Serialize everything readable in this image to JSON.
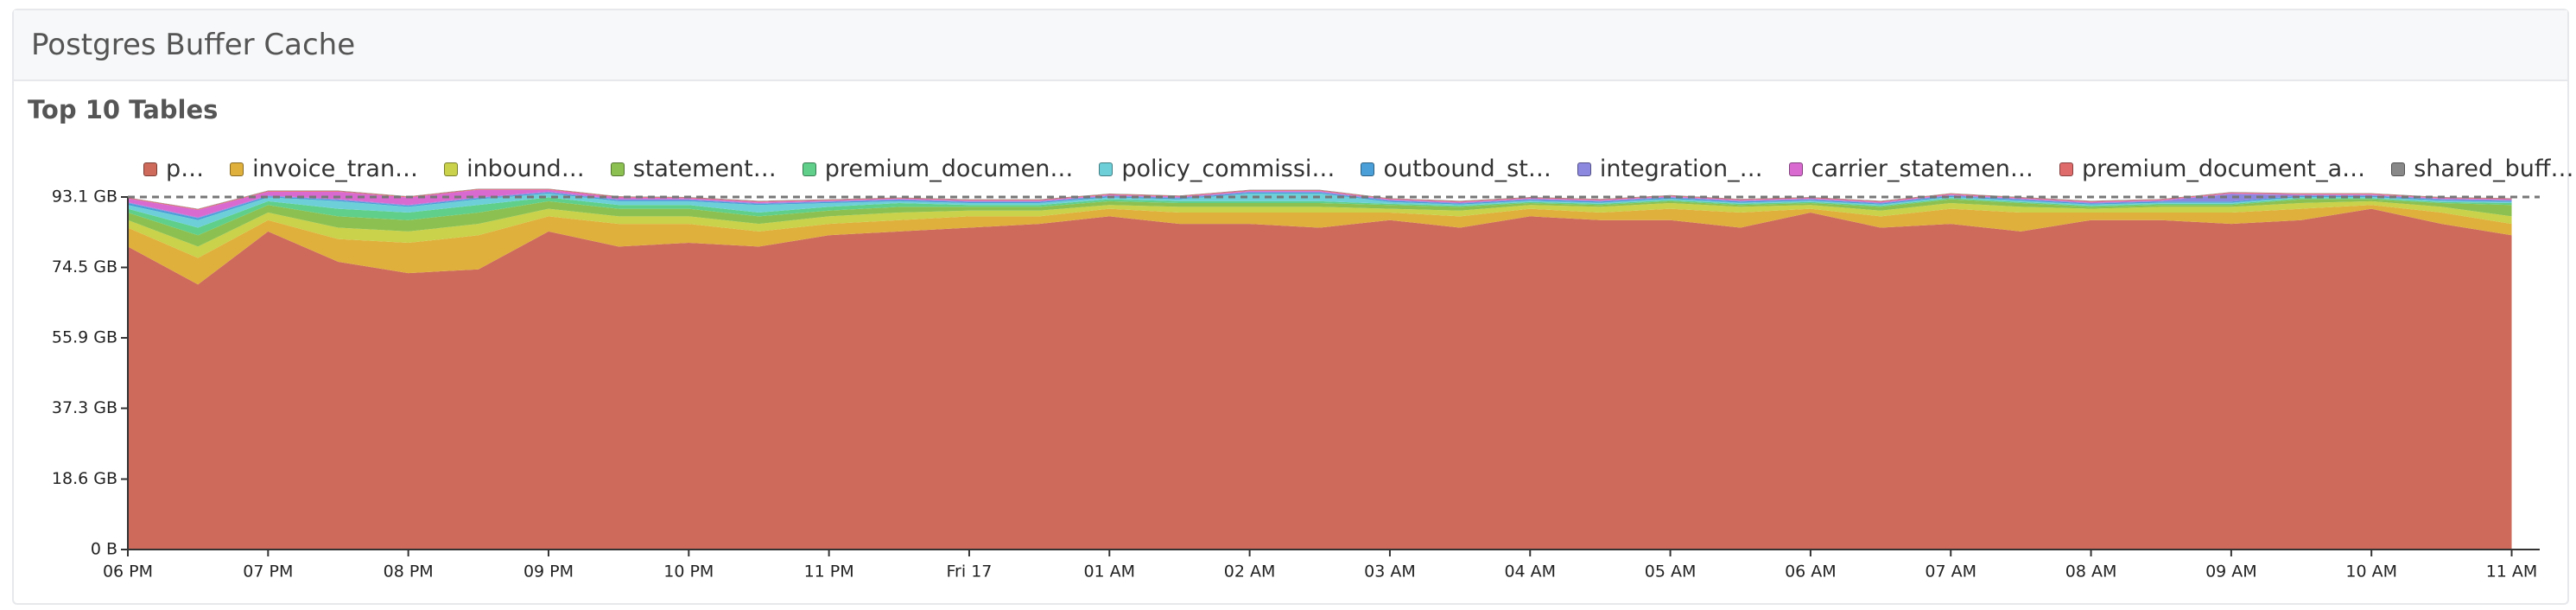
{
  "header": {
    "title": "Postgres Buffer Cache"
  },
  "chart_data": {
    "type": "stacked_area",
    "title": "Top 10 Tables",
    "x": [
      0,
      0.5,
      1,
      1.5,
      2,
      2.5,
      3,
      3.5,
      4,
      4.5,
      5,
      5.5,
      6,
      6.5,
      7,
      7.5,
      8,
      8.5,
      9,
      9.5,
      10,
      10.5,
      11,
      11.5,
      12,
      12.5,
      13,
      13.5,
      14,
      14.5,
      15,
      15.5,
      16,
      16.5,
      17
    ],
    "xlim": [
      0,
      17.2
    ],
    "xticks": [
      {
        "value": 0,
        "label": "06 PM"
      },
      {
        "value": 1,
        "label": "07 PM"
      },
      {
        "value": 2,
        "label": "08 PM"
      },
      {
        "value": 3,
        "label": "09 PM"
      },
      {
        "value": 4,
        "label": "10 PM"
      },
      {
        "value": 5,
        "label": "11 PM"
      },
      {
        "value": 6,
        "label": "Fri 17"
      },
      {
        "value": 7,
        "label": "01 AM"
      },
      {
        "value": 8,
        "label": "02 AM"
      },
      {
        "value": 9,
        "label": "03 AM"
      },
      {
        "value": 10,
        "label": "04 AM"
      },
      {
        "value": 11,
        "label": "05 AM"
      },
      {
        "value": 12,
        "label": "06 AM"
      },
      {
        "value": 13,
        "label": "07 AM"
      },
      {
        "value": 14,
        "label": "08 AM"
      },
      {
        "value": 15,
        "label": "09 AM"
      },
      {
        "value": 16,
        "label": "10 AM"
      },
      {
        "value": 17,
        "label": "11 AM"
      }
    ],
    "ylim": [
      0,
      93.1
    ],
    "yticks": [
      {
        "value": 0,
        "label": "0 B"
      },
      {
        "value": 18.6,
        "label": "18.6 GB"
      },
      {
        "value": 37.3,
        "label": "37.3 GB"
      },
      {
        "value": 55.9,
        "label": "55.9 GB"
      },
      {
        "value": 74.5,
        "label": "74.5 GB"
      },
      {
        "value": 93.1,
        "label": "93.1 GB"
      }
    ],
    "max_line": true,
    "series": [
      {
        "name": "p…",
        "color": "#cd6a5c",
        "values": [
          80,
          70,
          84,
          76,
          73,
          74,
          84,
          80,
          81,
          80,
          83,
          84,
          85,
          86,
          88,
          86,
          86,
          85,
          87,
          85,
          88,
          87,
          87,
          85,
          89,
          85,
          86,
          84,
          87,
          87,
          86,
          87,
          90,
          86,
          83
        ]
      },
      {
        "name": "invoice_tran…",
        "color": "#e0b03c",
        "values": [
          5,
          7,
          3,
          6,
          8,
          9,
          4,
          6,
          5,
          4,
          3,
          3,
          3,
          2,
          2,
          3,
          3,
          4,
          2,
          3,
          2,
          2,
          3,
          4,
          1,
          3,
          4,
          5,
          2,
          2,
          3,
          3,
          1,
          3,
          3
        ]
      },
      {
        "name": "inbound…",
        "color": "#c9d24a",
        "values": [
          2,
          3,
          2,
          3,
          3,
          3,
          2,
          2,
          2,
          2,
          2,
          2,
          1.5,
          1.5,
          1,
          1.5,
          1.5,
          1.5,
          1,
          1.5,
          1,
          1.5,
          1.5,
          1.5,
          1,
          1.5,
          1.5,
          1.5,
          1,
          1.5,
          1.5,
          1.5,
          1,
          1.5,
          2
        ]
      },
      {
        "name": "statement…",
        "color": "#8cc152",
        "values": [
          2,
          3,
          2,
          3,
          3,
          3,
          2,
          2,
          2,
          2,
          1.5,
          1.5,
          1,
          1,
          1,
          1,
          1,
          1,
          1,
          1,
          0.5,
          0.5,
          0.5,
          0.5,
          0.5,
          1,
          1,
          1,
          0.5,
          0.5,
          0.5,
          1,
          0.5,
          1,
          3
        ]
      },
      {
        "name": "premium_documen…",
        "color": "#5fcf8a",
        "values": [
          1,
          2,
          1,
          2,
          2,
          2,
          1,
          1,
          1,
          1,
          1,
          1,
          0.5,
          0.5,
          0.5,
          0.5,
          0.5,
          0.5,
          0.3,
          0.3,
          0.3,
          0.3,
          0.3,
          0.3,
          0.3,
          0.3,
          0.3,
          0.3,
          0.3,
          0.3,
          0.3,
          0.3,
          0.3,
          0.3,
          0.5
        ]
      },
      {
        "name": "policy_commissi…",
        "color": "#6dd0d8",
        "values": [
          1,
          2,
          1,
          2,
          1.5,
          1.5,
          1,
          1,
          1,
          2,
          1,
          0.5,
          0.5,
          0.5,
          0.5,
          0.5,
          2,
          2,
          0.5,
          0.3,
          0.3,
          0.3,
          0.3,
          0.3,
          0.3,
          0.3,
          0.3,
          0.3,
          0.3,
          0.3,
          0.3,
          0.3,
          0.3,
          0.3,
          0.3
        ]
      },
      {
        "name": "outbound_st…",
        "color": "#4a9fd8",
        "values": [
          0.5,
          0.5,
          0.3,
          0.3,
          0.3,
          0.3,
          0.3,
          0.3,
          0.3,
          0.3,
          0.3,
          0.3,
          0.3,
          0.3,
          0.3,
          0.3,
          0.3,
          0.3,
          0.3,
          0.3,
          0.3,
          0.3,
          0.3,
          0.3,
          0.3,
          0.3,
          0.3,
          0.3,
          0.3,
          0.3,
          0.3,
          0.3,
          0.3,
          0.3,
          0.3
        ]
      },
      {
        "name": "integration_…",
        "color": "#8c88e0",
        "values": [
          0.2,
          0.2,
          0.2,
          0.2,
          0.2,
          0.2,
          0.2,
          0.2,
          0.2,
          0.2,
          0.2,
          0.2,
          0.2,
          0.2,
          0.2,
          0.2,
          0.2,
          0.2,
          0.2,
          0.2,
          0.2,
          0.2,
          0.2,
          0.2,
          0.2,
          0.2,
          0.2,
          0.2,
          0.2,
          0.2,
          2,
          0.2,
          0.2,
          0.2,
          0.2
        ]
      },
      {
        "name": "carrier_statemen…",
        "color": "#d96bd0",
        "values": [
          1,
          2,
          1,
          2,
          2,
          2,
          0.5,
          0.5,
          0.3,
          0.3,
          0.2,
          0.2,
          0.2,
          0.2,
          0.2,
          0.2,
          0.2,
          0.2,
          0.2,
          0.2,
          0.2,
          0.2,
          0.2,
          0.2,
          0.2,
          0.2,
          0.2,
          0.2,
          0.2,
          0.2,
          0.2,
          0.2,
          0.2,
          0.2,
          0.2
        ]
      },
      {
        "name": "premium_document_a…",
        "color": "#e06b6b",
        "values": [
          0.2,
          0.2,
          0.2,
          0.2,
          0.2,
          0.2,
          0.2,
          0.2,
          0.2,
          0.2,
          0.2,
          0.2,
          0.2,
          0.2,
          0.2,
          0.2,
          0.2,
          0.2,
          0.2,
          0.2,
          0.2,
          0.2,
          0.2,
          0.2,
          0.2,
          0.2,
          0.2,
          0.2,
          0.2,
          0.2,
          0.2,
          0.2,
          0.2,
          0.2,
          0.2
        ]
      },
      {
        "name": "shared_buff…",
        "color": "#888888",
        "values": [
          0.1,
          0.1,
          0.1,
          0.1,
          0.1,
          0.1,
          0.1,
          0.1,
          0.1,
          0.1,
          0.1,
          0.1,
          0.1,
          0.1,
          0.1,
          0.1,
          0.1,
          0.1,
          0.1,
          0.1,
          0.1,
          0.1,
          0.1,
          0.1,
          0.1,
          0.1,
          0.1,
          0.1,
          0.1,
          0.1,
          0.1,
          0.1,
          0.1,
          0.1,
          0.1
        ]
      }
    ]
  }
}
